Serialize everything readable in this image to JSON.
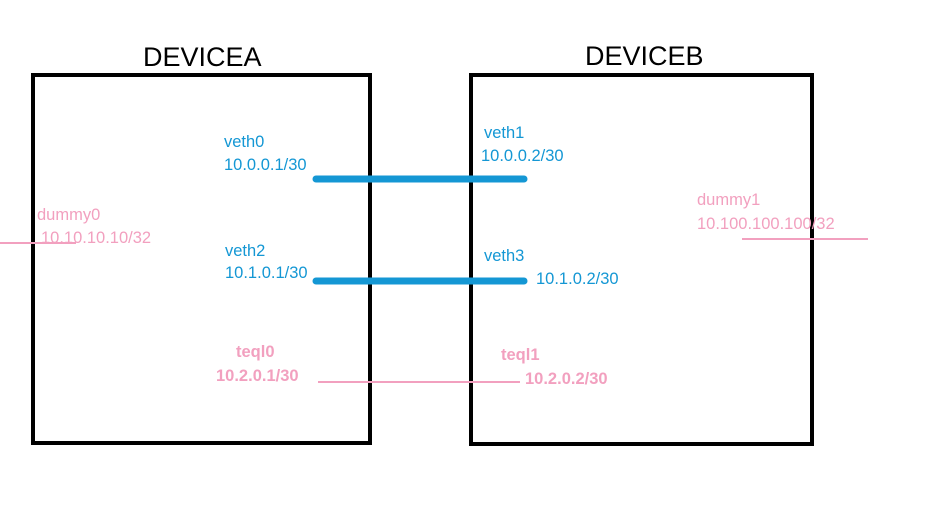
{
  "devices": {
    "a": {
      "title": "DEVICEA"
    },
    "b": {
      "title": "DEVICEB"
    }
  },
  "interfaces": {
    "veth0": {
      "name": "veth0",
      "ip": "10.0.0.1/30"
    },
    "veth1": {
      "name": "veth1",
      "ip": "10.0.0.2/30"
    },
    "veth2": {
      "name": "veth2",
      "ip": "10.1.0.1/30"
    },
    "veth3": {
      "name": "veth3",
      "ip": "10.1.0.2/30"
    },
    "teql0": {
      "name": "teql0",
      "ip": "10.2.0.1/30"
    },
    "teql1": {
      "name": "teql1",
      "ip": "10.2.0.2/30"
    },
    "dummy0": {
      "name": "dummy0",
      "ip": "10.10.10.10/32"
    },
    "dummy1": {
      "name": "dummy1",
      "ip": "10.100.100.100/32"
    }
  },
  "colors": {
    "veth": "#1497d4",
    "teql_dummy": "#f2a0bf",
    "border": "#000000"
  }
}
